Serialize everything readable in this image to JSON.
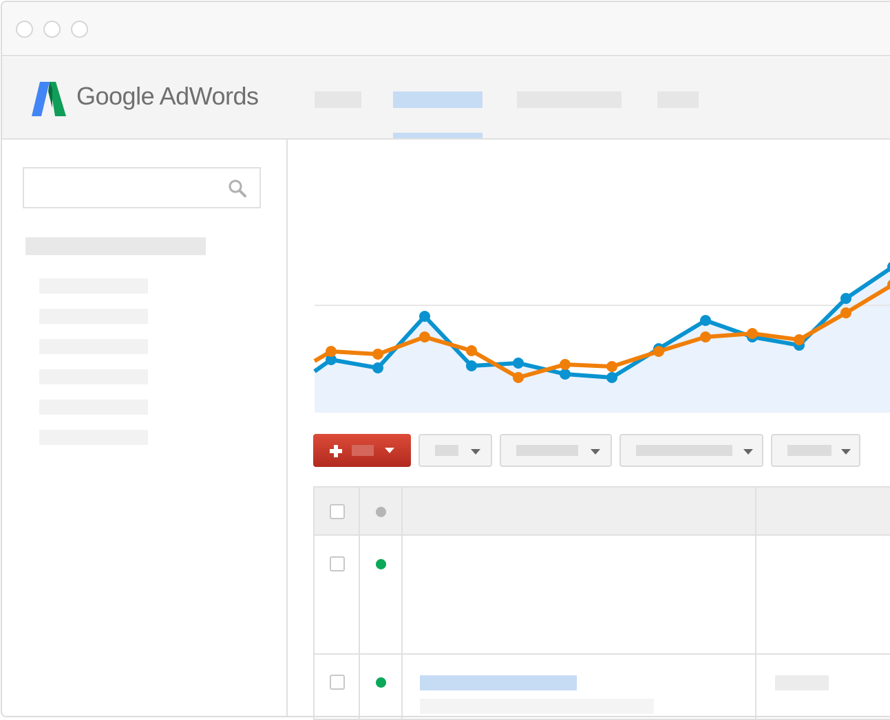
{
  "app": {
    "name": "Google AdWords"
  },
  "window": {
    "controls": [
      "close",
      "minimize",
      "maximize"
    ]
  },
  "colors": {
    "accent_blue": "#0a93d0",
    "accent_orange": "#f07f09",
    "area_fill": "#eaf2fd",
    "primary_button": "#d23f31",
    "status_active": "#0aa858",
    "status_header": "#b5b5b5"
  },
  "header": {
    "nav_items": [
      {
        "state": "default"
      },
      {
        "state": "active"
      },
      {
        "state": "default"
      },
      {
        "state": "default"
      }
    ]
  },
  "sidebar": {
    "search": {
      "placeholder": "",
      "value": "",
      "icon": "search-icon"
    }
  },
  "toolbar": {
    "add_button_icon": "plus-icon",
    "dropdown_icon": "caret-down-icon"
  },
  "table": {
    "rows": [
      {
        "status": "active"
      },
      {
        "status": "active"
      }
    ]
  },
  "chart_data": {
    "type": "line",
    "grid": true,
    "ylim": [
      0,
      260
    ],
    "series": [
      {
        "color": "#0a93d0",
        "area": true,
        "values": [
          60,
          77,
          65,
          140,
          68,
          72,
          56,
          51,
          93,
          134,
          110,
          98,
          166,
          212
        ]
      },
      {
        "color": "#f07f09",
        "area": false,
        "values": [
          75,
          89,
          85,
          110,
          90,
          51,
          70,
          67,
          89,
          110,
          115,
          106,
          145,
          186
        ]
      }
    ]
  }
}
